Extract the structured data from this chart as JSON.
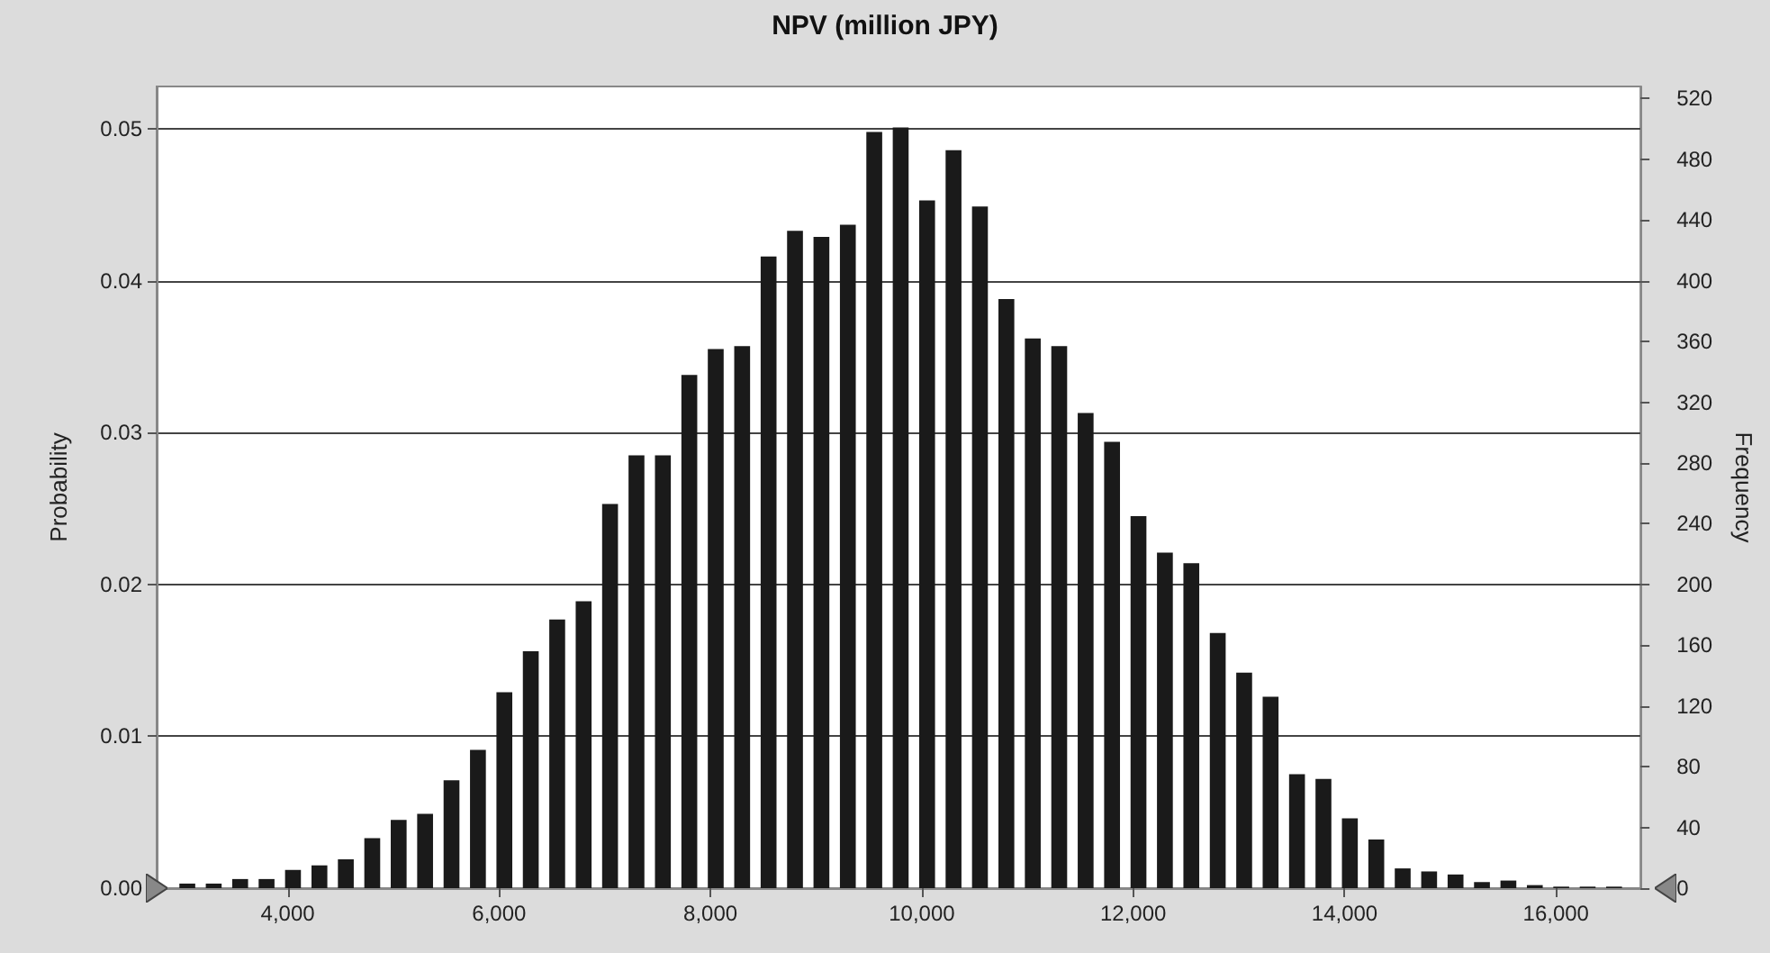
{
  "chart_data": {
    "type": "histogram",
    "title": "NPV (million JPY)",
    "ylabel": "Probability",
    "y2label": "Frequency",
    "bins": [
      2925,
      3175,
      3425,
      3675,
      3925,
      4175,
      4425,
      4675,
      4925,
      5175,
      5425,
      5675,
      5925,
      6175,
      6425,
      6675,
      6925,
      7175,
      7425,
      7675,
      7925,
      8175,
      8425,
      8675,
      8925,
      9175,
      9425,
      9675,
      9925,
      10175,
      10425,
      10675,
      10925,
      11175,
      11425,
      11675,
      11925,
      12175,
      12425,
      12675,
      12925,
      13175,
      13425,
      13675,
      13925,
      14175,
      14425,
      14675,
      14925,
      15175,
      15425,
      15675,
      15925,
      16175,
      16425,
      16675
    ],
    "series": [
      {
        "color": "#1a1a1a",
        "axis": "y2",
        "values": [
          3,
          3,
          6,
          6,
          12,
          15,
          19,
          33,
          45,
          49,
          71,
          91,
          129,
          156,
          177,
          189,
          253,
          285,
          285,
          338,
          355,
          357,
          416,
          433,
          429,
          437,
          498,
          501,
          453,
          486,
          449,
          388,
          362,
          357,
          313,
          294,
          245,
          221,
          214,
          168,
          142,
          126,
          75,
          72,
          46,
          32,
          13,
          11,
          9,
          4,
          5,
          2,
          1,
          1,
          1
        ]
      }
    ],
    "xlim": [
      2760,
      16800
    ],
    "xticks": [
      {
        "value": 4000,
        "label": "4,000"
      },
      {
        "value": 6000,
        "label": "6,000"
      },
      {
        "value": 8000,
        "label": "8,000"
      },
      {
        "value": 10000,
        "label": "10,000"
      },
      {
        "value": 12000,
        "label": "12,000"
      },
      {
        "value": 14000,
        "label": "14,000"
      },
      {
        "value": 16000,
        "label": "16,000"
      }
    ],
    "ylim": [
      0,
      0.0528
    ],
    "yticks": [
      {
        "value": 0,
        "label": "0.00"
      },
      0.01,
      0.02,
      0.03,
      0.04,
      0.05
    ],
    "y2lim": [
      0,
      528
    ],
    "y2ticks": [
      0,
      40,
      80,
      120,
      160,
      200,
      240,
      280,
      320,
      360,
      400,
      440,
      480,
      520
    ],
    "grid": "y"
  }
}
